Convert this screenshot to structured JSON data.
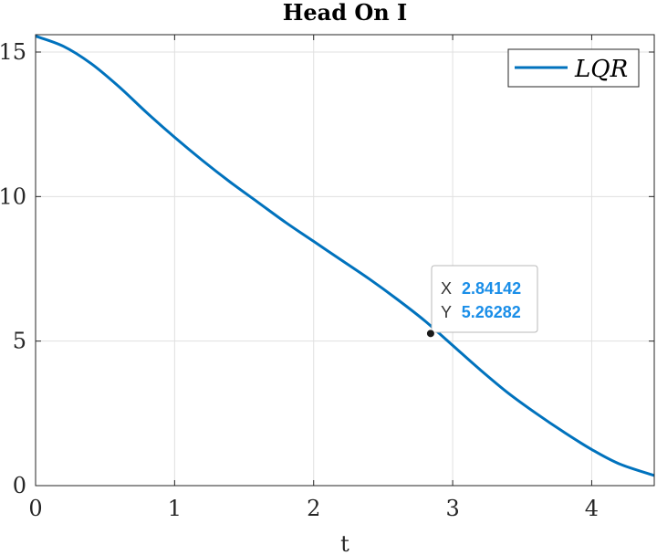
{
  "chart_data": {
    "type": "line",
    "title": "Head On I",
    "xlabel": "t",
    "ylabel": "",
    "xlim": [
      0,
      4.45
    ],
    "ylim": [
      0,
      15.6
    ],
    "xticks": [
      0,
      1,
      2,
      3,
      4
    ],
    "yticks": [
      0,
      5,
      10,
      15
    ],
    "grid": true,
    "legend": {
      "placement": "top-right"
    },
    "series": [
      {
        "name": "LQR",
        "color": "#0072BD",
        "x": [
          0,
          0.2,
          0.4,
          0.6,
          0.8,
          1.0,
          1.2,
          1.4,
          1.6,
          1.8,
          2.0,
          2.2,
          2.4,
          2.6,
          2.8,
          3.0,
          3.2,
          3.4,
          3.6,
          3.8,
          4.0,
          4.2,
          4.45
        ],
        "y": [
          15.55,
          15.2,
          14.6,
          13.8,
          12.9,
          12.05,
          11.25,
          10.5,
          9.8,
          9.1,
          8.45,
          7.8,
          7.15,
          6.45,
          5.7,
          4.85,
          4.0,
          3.2,
          2.5,
          1.85,
          1.25,
          0.75,
          0.35
        ]
      }
    ],
    "datatip": {
      "x_label": "X",
      "y_label": "Y",
      "x_value": "2.84142",
      "y_value": "5.26282",
      "x": 2.84142,
      "y": 5.26282
    }
  }
}
